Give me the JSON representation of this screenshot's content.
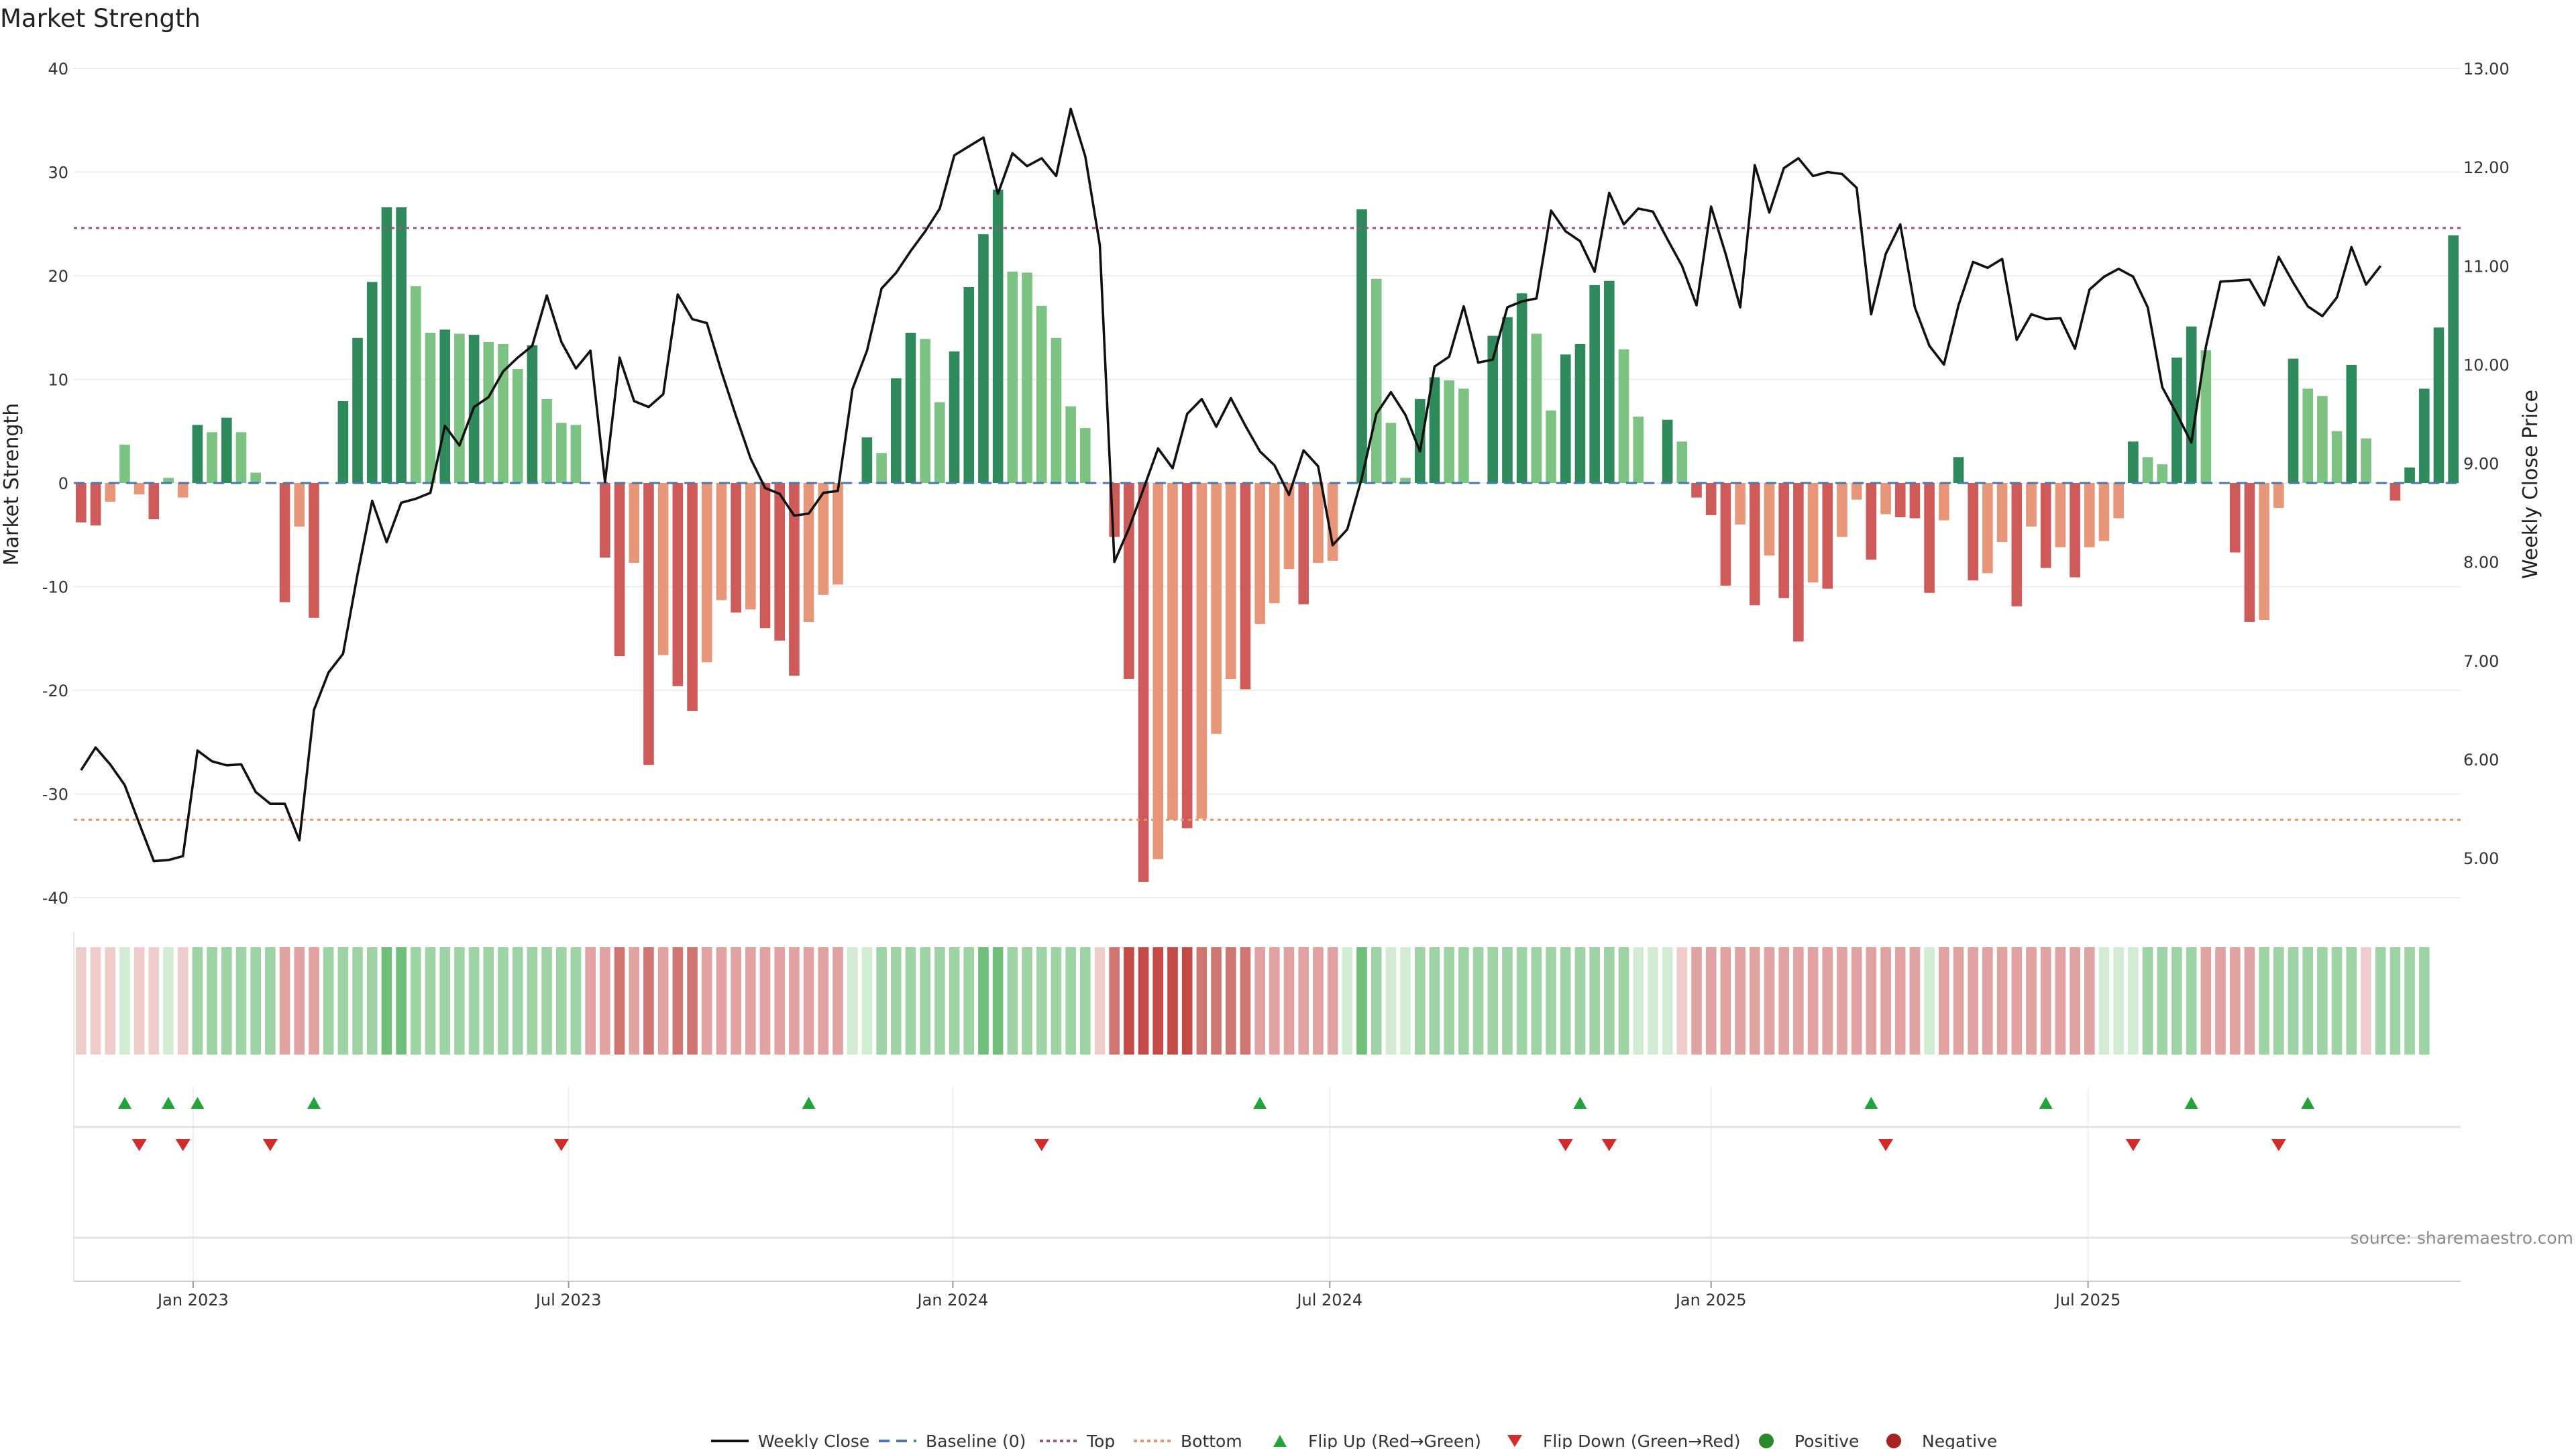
{
  "title": "Market Strength",
  "source": "source: sharemaestro.com",
  "colors": {
    "strong_green": "#2e8a5a",
    "light_green": "#7cc283",
    "strong_red": "#cf5a5a",
    "light_red": "#e8967a",
    "price_line": "#111111",
    "baseline": "#4a78b0",
    "top_line": "#a0508f",
    "bottom_line": "#e8956a",
    "flip_up": "#22a33c",
    "flip_down": "#d02c2c",
    "positive": "#2a8a2a",
    "negative": "#a82222"
  },
  "chart_data": {
    "type": "bar",
    "title": "Market Strength",
    "ylabel": "Market Strength",
    "y2label": "Weekly Close Price",
    "ylim": [
      -40,
      40
    ],
    "y2lim": [
      4.6,
      13.0
    ],
    "yticks": [
      40,
      30,
      20,
      10,
      0,
      -10,
      -20,
      -30,
      -40
    ],
    "y2ticks": [
      "13.00",
      "12.00",
      "11.00",
      "10.00",
      "9.00",
      "8.00",
      "7.00",
      "6.00",
      "5.00"
    ],
    "xticks": [
      {
        "label": "Jan 2023",
        "index": 7.7
      },
      {
        "label": "Jul 2023",
        "index": 33.5
      },
      {
        "label": "Jan 2024",
        "index": 59.9
      },
      {
        "label": "Jul 2024",
        "index": 85.8
      },
      {
        "label": "Jan 2025",
        "index": 112.0
      },
      {
        "label": "Jul 2025",
        "index": 137.9
      }
    ],
    "top_level": 24.6,
    "bottom_level": -32.5,
    "baseline": 0,
    "series": [
      {
        "name": "Market Strength",
        "values": [
          -3.8,
          -4.1,
          -1.8,
          3.7,
          -1.1,
          -3.5,
          0.5,
          -1.4,
          5.6,
          4.9,
          6.3,
          4.9,
          1.0,
          0,
          -11.5,
          -4.2,
          -13.0,
          0,
          7.9,
          14.0,
          19.4,
          26.6,
          26.6,
          19.0,
          14.5,
          14.8,
          14.4,
          14.3,
          13.6,
          13.4,
          11.0,
          13.3,
          8.1,
          5.8,
          5.6,
          0,
          -7.2,
          -16.7,
          -7.7,
          -27.2,
          -16.6,
          -19.6,
          -22.0,
          -17.3,
          -11.3,
          -12.5,
          -12.2,
          -14.0,
          -15.2,
          -18.6,
          -13.4,
          -10.8,
          -9.8,
          0,
          4.4,
          2.9,
          10.1,
          14.5,
          13.9,
          7.8,
          12.7,
          18.9,
          24.0,
          28.3,
          20.4,
          20.3,
          17.1,
          14.0,
          7.4,
          5.3,
          0,
          -5.2,
          -18.9,
          -38.5,
          -36.3,
          -32.5,
          -33.3,
          -32.4,
          -24.2,
          -18.9,
          -19.9,
          -13.6,
          -11.6,
          -8.3,
          -11.7,
          -7.7,
          -7.5,
          0,
          26.4,
          19.7,
          5.8,
          0.5,
          8.1,
          10.2,
          9.9,
          9.1,
          0,
          14.2,
          16.0,
          18.3,
          14.4,
          7.0,
          12.4,
          13.4,
          19.1,
          19.5,
          12.9,
          6.4,
          0,
          6.1,
          4.0,
          -1.4,
          -3.1,
          -9.9,
          -4.0,
          -11.8,
          -7.0,
          -11.1,
          -15.3,
          -9.6,
          -10.2,
          -5.2,
          -1.6,
          -7.4,
          -3.0,
          -3.3,
          -3.4,
          -10.6,
          -3.6,
          2.5,
          -9.4,
          -8.7,
          -5.7,
          -11.9,
          -4.2,
          -8.2,
          -6.2,
          -9.1,
          -6.2,
          -5.6,
          -3.4,
          4.0,
          2.5,
          1.8,
          12.1,
          15.1,
          12.8,
          0,
          -6.7,
          -13.4,
          -13.2,
          -2.4,
          12.0,
          9.1,
          8.4,
          5.0,
          11.4,
          4.3,
          0,
          -1.7,
          1.5,
          9.1,
          15.0,
          23.9
        ]
      },
      {
        "name": "Weekly Close",
        "values": [
          5.89,
          6.12,
          5.95,
          5.74,
          5.35,
          4.97,
          4.98,
          5.02,
          6.09,
          5.98,
          5.94,
          5.95,
          5.67,
          5.55,
          5.55,
          5.18,
          6.5,
          6.88,
          7.07,
          7.88,
          8.62,
          8.2,
          8.6,
          8.64,
          8.7,
          9.38,
          9.18,
          9.57,
          9.67,
          9.93,
          10.07,
          10.19,
          10.7,
          10.23,
          9.96,
          10.14,
          8.81,
          10.07,
          9.63,
          9.57,
          9.7,
          10.71,
          10.46,
          10.42,
          9.93,
          9.48,
          9.05,
          8.75,
          8.69,
          8.47,
          8.49,
          8.7,
          8.72,
          9.75,
          10.14,
          10.77,
          10.93,
          11.15,
          11.35,
          11.58,
          12.12,
          12.21,
          12.3,
          11.73,
          12.14,
          12.01,
          12.09,
          11.91,
          12.59,
          12.11,
          11.21,
          8.0,
          8.34,
          8.74,
          9.15,
          8.95,
          9.5,
          9.65,
          9.37,
          9.66,
          9.38,
          9.12,
          8.98,
          8.68,
          9.13,
          8.97,
          8.17,
          8.33,
          8.85,
          9.5,
          9.72,
          9.49,
          9.12,
          9.98,
          10.08,
          10.59,
          10.02,
          10.05,
          10.58,
          10.64,
          10.67,
          11.56,
          11.35,
          11.25,
          10.94,
          11.74,
          11.42,
          11.58,
          11.55,
          11.27,
          11.0,
          10.6,
          11.6,
          11.12,
          10.58,
          12.02,
          11.54,
          11.99,
          12.09,
          11.91,
          11.95,
          11.93,
          11.79,
          10.51,
          11.12,
          11.42,
          10.58,
          10.19,
          10.0,
          10.6,
          11.04,
          10.98,
          11.07,
          10.25,
          10.51,
          10.46,
          10.47,
          10.16,
          10.76,
          10.89,
          10.97,
          10.89,
          10.58,
          9.77,
          9.5,
          9.21,
          10.18,
          10.84,
          10.85,
          10.86,
          10.6,
          11.09,
          10.83,
          10.59,
          10.49,
          10.68,
          11.19,
          10.81,
          11.0
        ]
      }
    ],
    "bar_shades": [
      "dark_red",
      "dark_red",
      "light_red",
      "light_green",
      "light_red",
      "dark_red",
      "light_green",
      "light_red",
      "dark_green",
      "light_green",
      "dark_green",
      "light_green",
      "light_green",
      "none",
      "dark_red",
      "light_red",
      "dark_red",
      "none",
      "dark_green",
      "dark_green",
      "dark_green",
      "dark_green",
      "dark_green",
      "light_green",
      "light_green",
      "dark_green",
      "light_green",
      "dark_green",
      "light_green",
      "light_green",
      "light_green",
      "dark_green",
      "light_green",
      "light_green",
      "light_green",
      "none",
      "dark_red",
      "dark_red",
      "light_red",
      "dark_red",
      "light_red",
      "dark_red",
      "dark_red",
      "light_red",
      "light_red",
      "dark_red",
      "light_red",
      "dark_red",
      "dark_red",
      "dark_red",
      "light_red",
      "light_red",
      "light_red",
      "none",
      "dark_green",
      "light_green",
      "dark_green",
      "dark_green",
      "light_green",
      "light_green",
      "dark_green",
      "dark_green",
      "dark_green",
      "dark_green",
      "light_green",
      "light_green",
      "light_green",
      "light_green",
      "light_green",
      "light_green",
      "none",
      "dark_red",
      "dark_red",
      "dark_red",
      "light_red",
      "light_red",
      "dark_red",
      "light_red",
      "light_red",
      "light_red",
      "dark_red",
      "light_red",
      "light_red",
      "light_red",
      "dark_red",
      "light_red",
      "light_red",
      "none",
      "dark_green",
      "light_green",
      "light_green",
      "light_green",
      "dark_green",
      "dark_green",
      "light_green",
      "light_green",
      "none",
      "dark_green",
      "dark_green",
      "dark_green",
      "light_green",
      "light_green",
      "dark_green",
      "dark_green",
      "dark_green",
      "dark_green",
      "light_green",
      "light_green",
      "none",
      "dark_green",
      "light_green",
      "dark_red",
      "dark_red",
      "dark_red",
      "light_red",
      "dark_red",
      "light_red",
      "dark_red",
      "dark_red",
      "light_red",
      "dark_red",
      "light_red",
      "light_red",
      "dark_red",
      "light_red",
      "dark_red",
      "dark_red",
      "dark_red",
      "light_red",
      "dark_green",
      "dark_red",
      "light_red",
      "light_red",
      "dark_red",
      "light_red",
      "dark_red",
      "light_red",
      "dark_red",
      "light_red",
      "light_red",
      "light_red",
      "dark_green",
      "light_green",
      "light_green",
      "dark_green",
      "dark_green",
      "light_green",
      "none",
      "dark_red",
      "dark_red",
      "light_red",
      "light_red",
      "dark_green",
      "light_green",
      "light_green",
      "light_green",
      "dark_green",
      "light_green",
      "none",
      "dark_red",
      "dark_green",
      "dark_green",
      "dark_green",
      "dark_green"
    ],
    "strength_strip": [
      -1,
      -1,
      -1,
      1,
      -1,
      -1,
      1,
      -1,
      2,
      2,
      2,
      2,
      2,
      2,
      -2,
      -2,
      -2,
      2,
      2,
      2,
      2,
      3,
      3,
      2,
      2,
      2,
      2,
      2,
      2,
      2,
      2,
      2,
      2,
      2,
      2,
      -2,
      -2,
      -3,
      -2,
      -3,
      -2,
      -3,
      -3,
      -2,
      -2,
      -2,
      -2,
      -2,
      -2,
      -2,
      -2,
      -2,
      -2,
      1,
      1,
      2,
      2,
      2,
      2,
      2,
      2,
      2,
      3,
      3,
      2,
      2,
      2,
      2,
      2,
      2,
      -1,
      -3,
      -4,
      -4,
      -4,
      -4,
      -4,
      -3,
      -3,
      -3,
      -3,
      -2,
      -2,
      -2,
      -2,
      -2,
      -2,
      1,
      3,
      2,
      1,
      1,
      2,
      2,
      2,
      2,
      2,
      2,
      2,
      2,
      2,
      2,
      2,
      2,
      2,
      2,
      2,
      1,
      1,
      1,
      -1,
      -2,
      -2,
      -2,
      -2,
      -2,
      -2,
      -2,
      -2,
      -2,
      -2,
      -2,
      -2,
      -2,
      -2,
      -2,
      -2,
      1,
      -2,
      -2,
      -2,
      -2,
      -2,
      -2,
      -2,
      -2,
      -2,
      -2,
      -2,
      1,
      1,
      1,
      2,
      2,
      2,
      2,
      -2,
      -2,
      -2,
      -2,
      2,
      2,
      2,
      2,
      2,
      2,
      2,
      -1,
      2,
      2,
      2,
      2
    ],
    "flip_up_indices": [
      3,
      6,
      8,
      16,
      50,
      81,
      103,
      123,
      135,
      145,
      153
    ],
    "flip_down_indices": [
      4,
      7,
      13,
      33,
      66,
      102,
      105,
      124,
      141,
      151
    ],
    "legend": [
      "Weekly Close",
      "Baseline (0)",
      "Top",
      "Bottom",
      "Flip Up (Red→Green)",
      "Flip Down (Green→Red)",
      "Positive",
      "Negative"
    ],
    "legend_placement": "bottom-center",
    "grid": true
  }
}
